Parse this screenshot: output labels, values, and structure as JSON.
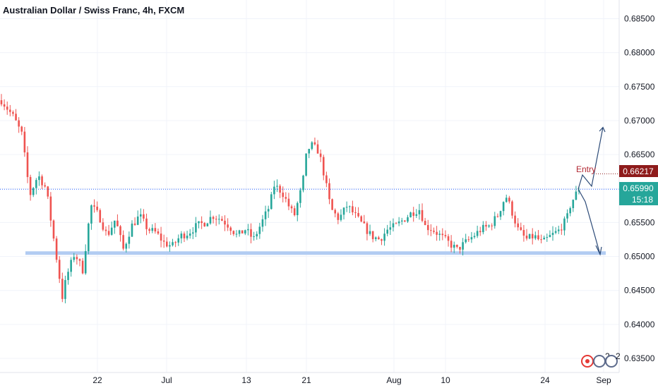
{
  "header": {
    "title": "Australian Dollar / Swiss Franc, 4h, FXCM"
  },
  "colors": {
    "up": "#26a69a",
    "down": "#ef5350",
    "grid": "#f0f3fa",
    "support_zone": "#b2ccf2",
    "resistance_line": "#2962ff",
    "arrow": "#2d4b78",
    "entry_badge": "#8e1b1b",
    "last_price_badge": "#26a69a",
    "entry_text": "#b22833"
  },
  "price_axis": {
    "ticks": [
      "0.68500",
      "0.68000",
      "0.67500",
      "0.67000",
      "0.66500",
      "0.66000",
      "0.65500",
      "0.65000",
      "0.64500",
      "0.64000",
      "0.63500"
    ]
  },
  "date_axis": {
    "ticks": [
      "22",
      "Jul",
      "13",
      "21",
      "Aug",
      "10",
      "24",
      "Sep"
    ]
  },
  "badges": {
    "entry_price": "0.66217",
    "last_price": "0.65990",
    "countdown": "15:18"
  },
  "annotations": {
    "entry_label": "Entry"
  },
  "toolbar": {
    "bottom_labels": [
      "2",
      "2"
    ]
  },
  "chart_data": {
    "type": "candlestick",
    "title": "Australian Dollar / Swiss Franc, 4h, FXCM",
    "symbol": "AUDCHF",
    "timeframe": "4h",
    "source": "FXCM",
    "ylim": [
      0.633,
      0.6875
    ],
    "y_ticks": [
      0.635,
      0.64,
      0.645,
      0.65,
      0.655,
      0.66,
      0.665,
      0.67,
      0.675,
      0.68,
      0.685
    ],
    "x_ticks": [
      "22",
      "Jul",
      "13",
      "21",
      "Aug",
      "10",
      "24",
      "Sep"
    ],
    "last_price": 0.6599,
    "entry_price": 0.66217,
    "resistance_level": 0.6599,
    "support_level": 0.6505,
    "price_path": [
      [
        0,
        0.673
      ],
      [
        3,
        0.6705
      ],
      [
        5,
        0.668
      ],
      [
        7,
        0.659
      ],
      [
        9,
        0.662
      ],
      [
        11,
        0.66
      ],
      [
        13,
        0.652
      ],
      [
        15,
        0.644
      ],
      [
        16,
        0.647
      ],
      [
        18,
        0.6505
      ],
      [
        20,
        0.648
      ],
      [
        22,
        0.6575
      ],
      [
        24,
        0.656
      ],
      [
        26,
        0.653
      ],
      [
        28,
        0.6555
      ],
      [
        30,
        0.651
      ],
      [
        32,
        0.6545
      ],
      [
        34,
        0.656
      ],
      [
        36,
        0.654
      ],
      [
        38,
        0.6535
      ],
      [
        40,
        0.652
      ],
      [
        42,
        0.6515
      ],
      [
        44,
        0.653
      ],
      [
        46,
        0.6535
      ],
      [
        48,
        0.6545
      ],
      [
        50,
        0.655
      ],
      [
        52,
        0.656
      ],
      [
        54,
        0.6555
      ],
      [
        56,
        0.6545
      ],
      [
        58,
        0.653
      ],
      [
        60,
        0.654
      ],
      [
        62,
        0.6525
      ],
      [
        64,
        0.655
      ],
      [
        66,
        0.6575
      ],
      [
        67,
        0.6605
      ],
      [
        69,
        0.6595
      ],
      [
        71,
        0.657
      ],
      [
        72,
        0.656
      ],
      [
        74,
        0.6605
      ],
      [
        75,
        0.665
      ],
      [
        76,
        0.6665
      ],
      [
        78,
        0.6655
      ],
      [
        79,
        0.663
      ],
      [
        81,
        0.657
      ],
      [
        83,
        0.6555
      ],
      [
        85,
        0.6575
      ],
      [
        87,
        0.656
      ],
      [
        89,
        0.6545
      ],
      [
        91,
        0.653
      ],
      [
        93,
        0.6525
      ],
      [
        95,
        0.654
      ],
      [
        97,
        0.6545
      ],
      [
        99,
        0.6555
      ],
      [
        101,
        0.6565
      ],
      [
        103,
        0.657
      ],
      [
        104,
        0.6545
      ],
      [
        106,
        0.654
      ],
      [
        108,
        0.653
      ],
      [
        110,
        0.652
      ],
      [
        112,
        0.651
      ],
      [
        114,
        0.652
      ],
      [
        116,
        0.653
      ],
      [
        118,
        0.654
      ],
      [
        120,
        0.6545
      ],
      [
        122,
        0.656
      ],
      [
        124,
        0.659
      ],
      [
        125,
        0.6575
      ],
      [
        127,
        0.654
      ],
      [
        129,
        0.6525
      ],
      [
        131,
        0.653
      ],
      [
        133,
        0.652
      ],
      [
        135,
        0.653
      ],
      [
        137,
        0.6538
      ],
      [
        139,
        0.6555
      ],
      [
        140,
        0.6578
      ],
      [
        142,
        0.66
      ]
    ],
    "scenario": {
      "entry_label": "Entry",
      "up_target": 0.669,
      "down_target": 0.6503
    }
  }
}
